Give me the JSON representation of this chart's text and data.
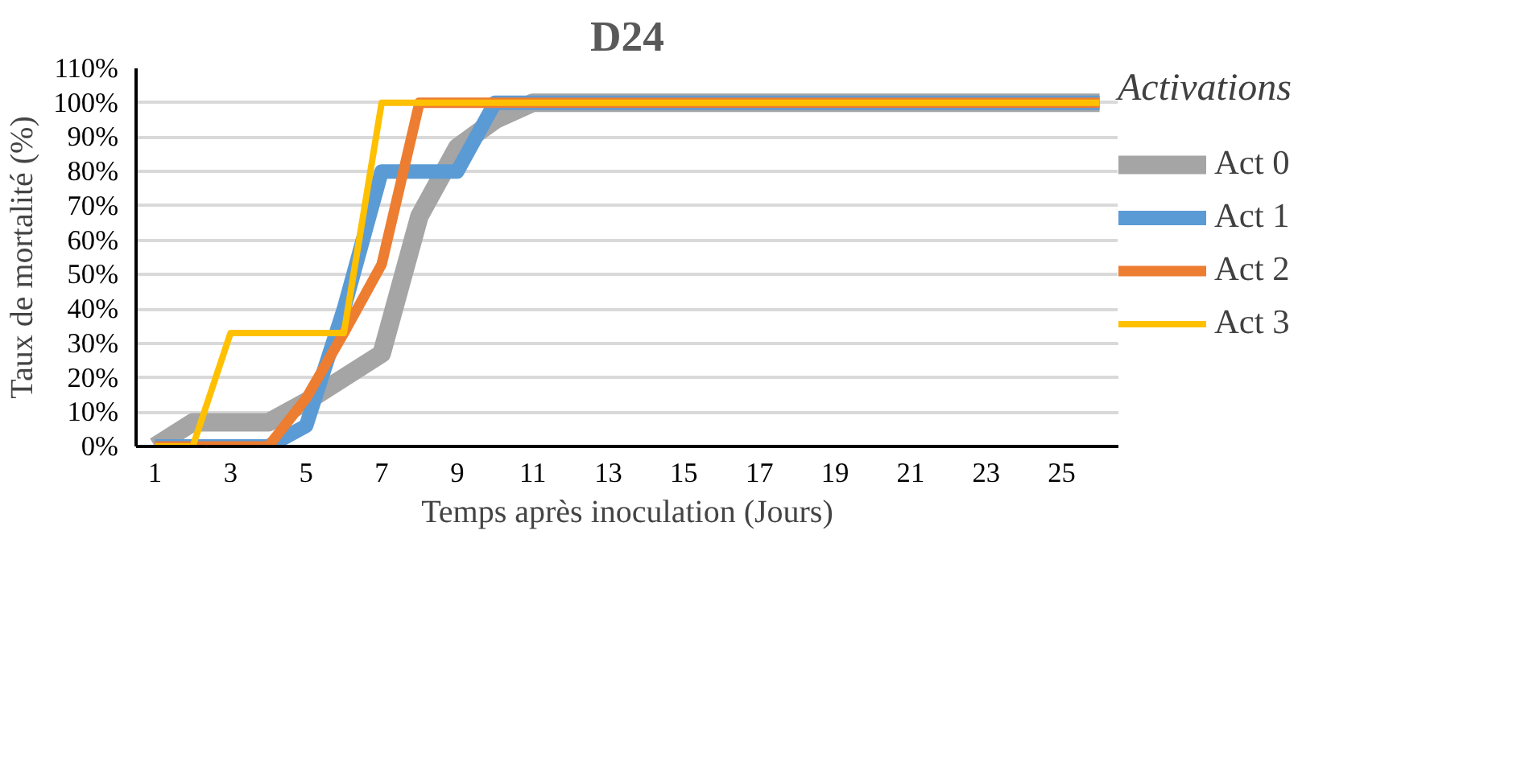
{
  "chart_data": {
    "type": "line",
    "title": "D24",
    "xlabel": "Temps après inoculation (Jours)",
    "ylabel": "Taux de mortalité (%)",
    "legend_title": "Activations",
    "legend": "right",
    "grid": "y",
    "marker": "none",
    "line_style": "solid",
    "x": [
      1,
      2,
      3,
      4,
      5,
      6,
      7,
      8,
      9,
      10,
      11,
      12,
      13,
      14,
      15,
      16,
      17,
      18,
      19,
      20,
      21,
      22,
      23,
      24,
      25,
      26
    ],
    "xlim": [
      0.5,
      26.5
    ],
    "xticks": [
      1,
      3,
      5,
      7,
      9,
      11,
      13,
      15,
      17,
      19,
      21,
      23,
      25
    ],
    "ylim": [
      0,
      110
    ],
    "yticks": [
      {
        "value": 0,
        "label": "0%"
      },
      {
        "value": 10,
        "label": "10%"
      },
      {
        "value": 20,
        "label": "20%"
      },
      {
        "value": 30,
        "label": "30%"
      },
      {
        "value": 40,
        "label": "40%"
      },
      {
        "value": 50,
        "label": "50%"
      },
      {
        "value": 60,
        "label": "60%"
      },
      {
        "value": 70,
        "label": "70%"
      },
      {
        "value": 80,
        "label": "80%"
      },
      {
        "value": 90,
        "label": "90%"
      },
      {
        "value": 100,
        "label": "100%"
      },
      {
        "value": 110,
        "label": "110%"
      }
    ],
    "series": [
      {
        "name": "Act 0",
        "color": "#a5a5a5",
        "values": [
          0,
          7,
          7,
          7,
          13,
          20,
          27,
          67,
          87,
          95,
          100,
          100,
          100,
          100,
          100,
          100,
          100,
          100,
          100,
          100,
          100,
          100,
          100,
          100,
          100,
          100
        ]
      },
      {
        "name": "Act 1",
        "color": "#5b9bd5",
        "values": [
          0,
          0,
          0,
          0,
          6,
          40,
          80,
          80,
          80,
          100,
          100,
          100,
          100,
          100,
          100,
          100,
          100,
          100,
          100,
          100,
          100,
          100,
          100,
          100,
          100,
          100
        ]
      },
      {
        "name": "Act 2",
        "color": "#ed7d31",
        "values": [
          0,
          0,
          0,
          0,
          14,
          33,
          53,
          100,
          100,
          100,
          100,
          100,
          100,
          100,
          100,
          100,
          100,
          100,
          100,
          100,
          100,
          100,
          100,
          100,
          100,
          100
        ]
      },
      {
        "name": "Act 3",
        "color": "#ffc000",
        "values": [
          0,
          0,
          33,
          33,
          33,
          33,
          100,
          100,
          100,
          100,
          100,
          100,
          100,
          100,
          100,
          100,
          100,
          100,
          100,
          100,
          100,
          100,
          100,
          100,
          100,
          100
        ]
      }
    ]
  }
}
